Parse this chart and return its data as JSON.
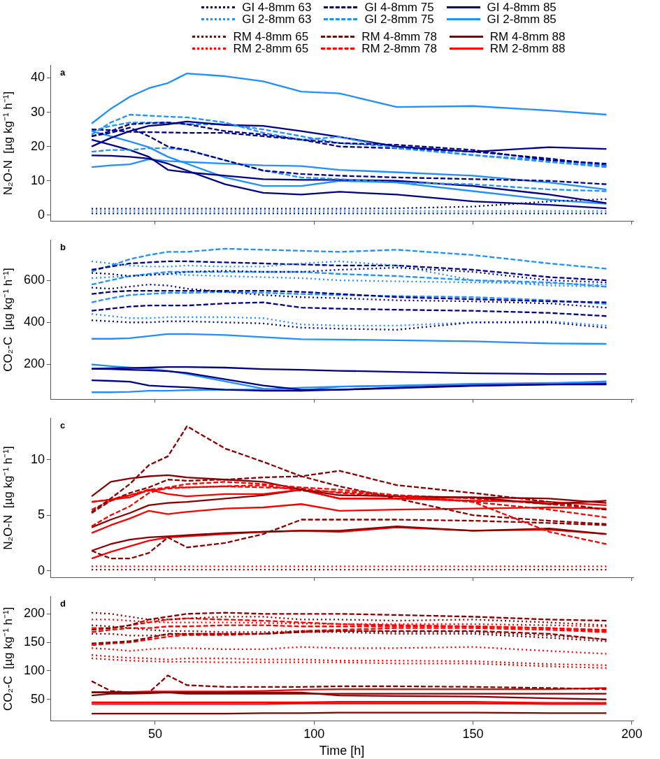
{
  "chart_data": [
    {
      "type": "line",
      "title": "a",
      "ylabel": "N₂O-N  [µg kg⁻¹ h⁻¹]",
      "x": [
        30,
        36,
        42,
        48,
        54,
        60,
        72,
        84,
        96,
        108,
        126,
        150,
        174,
        192
      ],
      "xlim": [
        17,
        200.5
      ],
      "xticks": [
        50,
        100,
        150,
        200
      ],
      "ylim": [
        -1.7,
        43.6
      ],
      "yticks": [
        0,
        10,
        20,
        30,
        40
      ],
      "grid": false,
      "legend": "top",
      "tick_labels": "y",
      "series": [
        {
          "name": "GI 4-8mm 63",
          "color": "#00008b",
          "line_style": "dotted",
          "values": [
            1.9,
            1.9,
            1.9,
            1.9,
            1.9,
            1.9,
            1.9,
            1.9,
            1.9,
            1.9,
            2,
            2.5,
            4,
            4.7
          ]
        },
        {
          "name": "GI 2-8mm 63",
          "color": "#1e90ff",
          "line_style": "dotted",
          "values": [
            1.2,
            1.2,
            1.2,
            1.2,
            1.2,
            1.2,
            1.2,
            1.2,
            1.2,
            1.2,
            1.2,
            1.2,
            1.2,
            1.2
          ]
        },
        {
          "name": "GI 4-8mm 75",
          "color": "#00008b",
          "line_style": "dashed",
          "values": [
            23,
            24.5,
            26.5,
            26.8,
            27,
            26.5,
            24.5,
            23.5,
            22,
            21,
            20.5,
            19,
            16,
            15
          ]
        },
        {
          "name": "GI 2-8mm 75",
          "color": "#1e90ff",
          "line_style": "dashed",
          "values": [
            23.5,
            27,
            29.3,
            29,
            28.7,
            28.5,
            27,
            24,
            22,
            22.8,
            19.5,
            17.5,
            16,
            14.3
          ]
        },
        {
          "name": "GI 4-8mm 85",
          "color": "#00008b",
          "line_style": "solid",
          "values": [
            20,
            22.5,
            24.5,
            26,
            26.5,
            27.3,
            26.3,
            26,
            24.5,
            22.8,
            20,
            18.5,
            19.8,
            19.3
          ]
        },
        {
          "name": "GI 2-8mm 85",
          "color": "#1e90ff",
          "line_style": "solid",
          "values": [
            26.7,
            31,
            34.5,
            37,
            38.5,
            41.3,
            40.5,
            39,
            36,
            35.5,
            31.5,
            31.8,
            30.5,
            29.3
          ]
        },
        {
          "color": "#00008b",
          "line_style": "dotted",
          "values": [
            0.5,
            0.5,
            0.5,
            0.5,
            0.5,
            0.5,
            0.5,
            0.5,
            0.5,
            0.5,
            0.5,
            0.5,
            0.5,
            0.5
          ]
        },
        {
          "color": "#00008b",
          "line_style": "dashed",
          "values": [
            25,
            24.8,
            24.3,
            24.2,
            24.1,
            24,
            24,
            23,
            22,
            20,
            19.5,
            18.5,
            16.5,
            14.5
          ]
        },
        {
          "color": "#00008b",
          "line_style": "dashed",
          "values": [
            23,
            24,
            25.5,
            23,
            20,
            19,
            16,
            13,
            12,
            11.5,
            11,
            10.5,
            10,
            9
          ]
        },
        {
          "color": "#1e90ff",
          "line_style": "dashed",
          "values": [
            18.5,
            19,
            19,
            19.5,
            19.5,
            19,
            16,
            13,
            11,
            10.5,
            9.5,
            9,
            7.5,
            7
          ]
        },
        {
          "color": "#1e90ff",
          "line_style": "dashed",
          "values": [
            24.5,
            26,
            27,
            27,
            27,
            26.5,
            26.5,
            25,
            23,
            21,
            20,
            17.5,
            15.5,
            14
          ]
        },
        {
          "color": "#00008b",
          "line_style": "solid",
          "values": [
            22,
            20.5,
            19,
            17,
            13.2,
            12.5,
            11.5,
            10.5,
            10.3,
            10.3,
            10,
            8.5,
            6,
            3.5
          ]
        },
        {
          "color": "#00008b",
          "line_style": "solid",
          "values": [
            17.4,
            17.3,
            17,
            16.5,
            15,
            13,
            9,
            6.5,
            6,
            6.8,
            6,
            4,
            3,
            2
          ]
        },
        {
          "color": "#1e90ff",
          "line_style": "solid",
          "values": [
            24.5,
            23,
            21.5,
            19.8,
            17,
            15,
            11,
            8.5,
            8.5,
            10,
            9.5,
            7,
            4.5,
            3.3
          ]
        },
        {
          "color": "#1e90ff",
          "line_style": "solid",
          "values": [
            14,
            14.5,
            14.8,
            16.3,
            15.8,
            15.5,
            15,
            14.5,
            14.3,
            13.2,
            12.5,
            11.5,
            9.5,
            7.5
          ]
        }
      ]
    },
    {
      "type": "line",
      "title": "b",
      "ylabel": "CO₂-C  [µg kg⁻¹ h⁻¹]",
      "x": [
        30,
        36,
        42,
        48,
        54,
        60,
        72,
        84,
        96,
        108,
        126,
        150,
        174,
        192
      ],
      "xlim": [
        17,
        200.5
      ],
      "xticks": [
        50,
        100,
        150,
        200
      ],
      "ylim": [
        35,
        790
      ],
      "yticks": [
        200,
        400,
        600
      ],
      "grid": false,
      "tick_labels": "y",
      "series": [
        {
          "color": "#00008b",
          "line_style": "dotted",
          "values": [
            635,
            630,
            620,
            625,
            630,
            640,
            645,
            640,
            640,
            650,
            660,
            640,
            600,
            590
          ]
        },
        {
          "color": "#00008b",
          "line_style": "dotted",
          "values": [
            565,
            560,
            570,
            580,
            575,
            560,
            545,
            530,
            520,
            515,
            505,
            500,
            490,
            470
          ]
        },
        {
          "color": "#00008b",
          "line_style": "dotted",
          "values": [
            410,
            405,
            400,
            400,
            405,
            405,
            400,
            395,
            375,
            370,
            365,
            400,
            400,
            375
          ]
        },
        {
          "color": "#1e90ff",
          "line_style": "dotted",
          "values": [
            690,
            680,
            670,
            665,
            665,
            670,
            665,
            665,
            680,
            690,
            670,
            600,
            575,
            570
          ]
        },
        {
          "color": "#1e90ff",
          "line_style": "dotted",
          "values": [
            610,
            615,
            620,
            625,
            630,
            625,
            620,
            615,
            610,
            600,
            595,
            590,
            585,
            580
          ]
        },
        {
          "color": "#1e90ff",
          "line_style": "dotted",
          "values": [
            440,
            430,
            420,
            420,
            425,
            425,
            425,
            420,
            390,
            385,
            385,
            400,
            405,
            385
          ]
        },
        {
          "color": "#00008b",
          "line_style": "dashed",
          "values": [
            650,
            665,
            680,
            685,
            690,
            690,
            685,
            680,
            675,
            670,
            670,
            650,
            615,
            600
          ]
        },
        {
          "color": "#00008b",
          "line_style": "dashed",
          "values": [
            535,
            545,
            550,
            550,
            550,
            550,
            550,
            550,
            545,
            535,
            520,
            510,
            500,
            495
          ]
        },
        {
          "color": "#00008b",
          "line_style": "dashed",
          "values": [
            455,
            465,
            475,
            480,
            480,
            480,
            490,
            495,
            470,
            465,
            460,
            455,
            445,
            430
          ]
        },
        {
          "color": "#1e90ff",
          "line_style": "dashed",
          "values": [
            642,
            670,
            700,
            720,
            735,
            735,
            750,
            745,
            740,
            735,
            745,
            720,
            680,
            655
          ]
        },
        {
          "color": "#1e90ff",
          "line_style": "dashed",
          "values": [
            580,
            600,
            620,
            630,
            640,
            640,
            640,
            640,
            640,
            630,
            620,
            600,
            590,
            570
          ]
        },
        {
          "color": "#1e90ff",
          "line_style": "dashed",
          "values": [
            495,
            515,
            530,
            535,
            540,
            540,
            545,
            540,
            535,
            530,
            525,
            520,
            505,
            488
          ]
        },
        {
          "color": "#00008b",
          "line_style": "solid",
          "values": [
            180,
            182,
            183,
            185,
            188,
            188,
            185,
            178,
            175,
            170,
            165,
            158,
            155,
            155
          ]
        },
        {
          "color": "#00008b",
          "line_style": "solid",
          "values": [
            180,
            178,
            175,
            172,
            168,
            160,
            130,
            100,
            80,
            80,
            88,
            98,
            105,
            105
          ]
        },
        {
          "color": "#00008b",
          "line_style": "solid",
          "values": [
            125,
            122,
            118,
            100,
            95,
            92,
            80,
            75,
            75,
            80,
            90,
            100,
            105,
            108
          ]
        },
        {
          "color": "#1e90ff",
          "line_style": "solid",
          "values": [
            322,
            322,
            325,
            335,
            345,
            345,
            340,
            330,
            320,
            318,
            315,
            310,
            300,
            298
          ]
        },
        {
          "color": "#1e90ff",
          "line_style": "solid",
          "values": [
            200,
            192,
            185,
            180,
            170,
            155,
            120,
            85,
            75,
            95,
            98,
            105,
            110,
            120
          ]
        },
        {
          "color": "#1e90ff",
          "line_style": "solid",
          "values": [
            68,
            68,
            70,
            75,
            75,
            78,
            80,
            82,
            90,
            95,
            100,
            108,
            112,
            115
          ]
        }
      ]
    },
    {
      "type": "line",
      "title": "c",
      "ylabel": "N₂O-N  [µg kg⁻¹ h⁻¹]",
      "x": [
        30,
        36,
        42,
        48,
        54,
        60,
        72,
        84,
        96,
        108,
        126,
        150,
        174,
        192
      ],
      "xlim": [
        17,
        200.5
      ],
      "xticks": [
        50,
        100,
        150,
        200
      ],
      "ylim": [
        -0.6,
        13.7
      ],
      "yticks": [
        0,
        5,
        10
      ],
      "grid": false,
      "legend": "top",
      "tick_labels": "y",
      "series": [
        {
          "name": "RM 4-8mm 65",
          "color": "#8b0000",
          "line_style": "dotted",
          "values": [
            0.1,
            0.1,
            0.1,
            0.1,
            0.1,
            0.1,
            0.1,
            0.1,
            0.1,
            0.1,
            0.1,
            0.1,
            0.1,
            0.1
          ]
        },
        {
          "name": "RM 2-8mm 65",
          "color": "#ff0000",
          "line_style": "dotted",
          "values": [
            0.4,
            0.4,
            0.4,
            0.4,
            0.4,
            0.4,
            0.4,
            0.4,
            0.4,
            0.4,
            0.4,
            0.4,
            0.4,
            0.4
          ]
        },
        {
          "name": "RM 4-8mm 78",
          "color": "#8b0000",
          "line_style": "dashed",
          "values": [
            5.3,
            6.5,
            7.8,
            9.5,
            10.3,
            13,
            11,
            9.8,
            8.5,
            9,
            7.7,
            7,
            6.2,
            5.5
          ]
        },
        {
          "name": "RM 2-8mm 78",
          "color": "#ff0000",
          "line_style": "dashed",
          "values": [
            4,
            5,
            5.8,
            7,
            7.5,
            7.8,
            8,
            7.8,
            7.5,
            7.3,
            6.8,
            6.2,
            3.5,
            2.4
          ]
        },
        {
          "name": "RM 4-8mm 88",
          "color": "#8b0000",
          "line_style": "solid",
          "values": [
            6.7,
            8,
            8.3,
            8.5,
            8.6,
            8.4,
            8.2,
            8,
            7.3,
            6.8,
            6.7,
            6.6,
            6,
            6.3
          ]
        },
        {
          "name": "RM 2-8mm 88",
          "color": "#ff0000",
          "line_style": "solid",
          "values": [
            6.2,
            6.4,
            6.6,
            7.3,
            6.9,
            6.7,
            6.9,
            6.9,
            7.3,
            6.5,
            6.5,
            6.3,
            6.2,
            5.9
          ]
        },
        {
          "color": "#8b0000",
          "line_style": "dashed",
          "values": [
            1.8,
            1.1,
            1.1,
            1.6,
            3,
            2.1,
            2.5,
            3.3,
            4.6,
            4.6,
            4.6,
            4.5,
            4.3,
            4.1
          ]
        },
        {
          "color": "#8b0000",
          "line_style": "dashed",
          "values": [
            5.2,
            6.3,
            7,
            7.5,
            8.2,
            8.1,
            8.2,
            8.4,
            8.5,
            7.6,
            6.5,
            5,
            4.5,
            4.2
          ]
        },
        {
          "color": "#ff0000",
          "line_style": "dashed",
          "values": [
            5.5,
            6.3,
            6.8,
            7.3,
            7.5,
            7.5,
            7.6,
            7.7,
            7.2,
            7.1,
            6.8,
            6.5,
            6,
            5.5
          ]
        },
        {
          "color": "#ff0000",
          "line_style": "dashed",
          "values": [
            6.2,
            6.4,
            6.8,
            7.2,
            7.4,
            7.5,
            7.6,
            7.5,
            7.4,
            7,
            6.7,
            6.2,
            5.5,
            4.8
          ]
        },
        {
          "color": "#8b0000",
          "line_style": "solid",
          "values": [
            3.9,
            4.6,
            5.2,
            5.9,
            6.1,
            6.2,
            6.5,
            6.8,
            7.3,
            6.5,
            6.5,
            6.6,
            6.5,
            6.1
          ]
        },
        {
          "color": "#8b0000",
          "line_style": "solid",
          "values": [
            1.8,
            2.4,
            2.8,
            3,
            3.1,
            3.2,
            3.4,
            3.5,
            3.6,
            3.6,
            4,
            3.6,
            3.8,
            3.3
          ]
        },
        {
          "color": "#ff0000",
          "line_style": "solid",
          "values": [
            3.4,
            4.1,
            4.7,
            5.4,
            5.1,
            5.3,
            5.6,
            5.7,
            6,
            5.4,
            5.5,
            5.6,
            5.7,
            5.6
          ]
        },
        {
          "color": "#ff0000",
          "line_style": "solid",
          "values": [
            1.1,
            1.7,
            2.2,
            2.7,
            3,
            3.1,
            3.3,
            3.5,
            3.6,
            3.5,
            3.9,
            3.6,
            3.7,
            3.3
          ]
        }
      ]
    },
    {
      "type": "line",
      "title": "d",
      "xlabel": "Time [h]",
      "ylabel": "CO₂-C  [µg kg⁻¹ h⁻¹]",
      "x": [
        30,
        36,
        42,
        48,
        54,
        60,
        72,
        84,
        96,
        108,
        126,
        150,
        174,
        192
      ],
      "xlim": [
        17,
        200.5
      ],
      "xticks": [
        50,
        100,
        150,
        200
      ],
      "ylim": [
        12,
        230
      ],
      "yticks": [
        50,
        100,
        150,
        200
      ],
      "grid": false,
      "series": [
        {
          "color": "#8b0000",
          "line_style": "dotted",
          "values": [
            202,
            200,
            195,
            190,
            190,
            192,
            195,
            195,
            190,
            190,
            188,
            190,
            185,
            180
          ]
        },
        {
          "color": "#8b0000",
          "line_style": "dotted",
          "values": [
            180,
            178,
            175,
            172,
            170,
            170,
            168,
            168,
            170,
            170,
            168,
            168,
            162,
            155
          ]
        },
        {
          "color": "#8b0000",
          "line_style": "dotted",
          "values": [
            165,
            165,
            162,
            162,
            163,
            165,
            165,
            165,
            168,
            168,
            165,
            165,
            158,
            152
          ]
        },
        {
          "color": "#ff0000",
          "line_style": "dotted",
          "values": [
            190,
            190,
            188,
            186,
            185,
            185,
            185,
            184,
            183,
            182,
            182,
            182,
            180,
            178
          ]
        },
        {
          "color": "#ff0000",
          "line_style": "dotted",
          "values": [
            140,
            138,
            135,
            138,
            140,
            140,
            138,
            138,
            142,
            140,
            140,
            142,
            135,
            130
          ]
        },
        {
          "color": "#ff0000",
          "line_style": "dotted",
          "values": [
            128,
            125,
            123,
            122,
            120,
            122,
            122,
            120,
            120,
            118,
            118,
            117,
            112,
            110
          ]
        },
        {
          "color": "#ff0000",
          "line_style": "dotted",
          "values": [
            122,
            120,
            118,
            117,
            116,
            116,
            115,
            115,
            115,
            115,
            113,
            113,
            108,
            105
          ]
        },
        {
          "color": "#8b0000",
          "line_style": "dashed",
          "values": [
            148,
            150,
            152,
            158,
            165,
            165,
            165,
            165,
            168,
            170,
            170,
            170,
            165,
            155
          ]
        },
        {
          "color": "#8b0000",
          "line_style": "dashed",
          "values": [
            172,
            175,
            180,
            190,
            195,
            200,
            202,
            200,
            200,
            200,
            198,
            195,
            190,
            188
          ]
        },
        {
          "color": "#8b0000",
          "line_style": "dashed",
          "values": [
            82,
            65,
            62,
            62,
            92,
            75,
            72,
            72,
            72,
            73,
            73,
            72,
            70,
            68
          ]
        },
        {
          "color": "#ff0000",
          "line_style": "dashed",
          "values": [
            145,
            148,
            150,
            155,
            160,
            163,
            163,
            165,
            170,
            172,
            175,
            175,
            172,
            168
          ]
        },
        {
          "color": "#ff0000",
          "line_style": "dashed",
          "values": [
            175,
            175,
            180,
            185,
            190,
            192,
            190,
            188,
            185,
            182,
            180,
            178,
            175,
            172
          ]
        },
        {
          "color": "#ff0000",
          "line_style": "dashed",
          "values": [
            168,
            172,
            175,
            175,
            178,
            178,
            180,
            180,
            178,
            178,
            178,
            178,
            175,
            170
          ]
        },
        {
          "color": "#8b0000",
          "line_style": "solid",
          "values": [
            57,
            60,
            60,
            61,
            62,
            60,
            60,
            60,
            60,
            60,
            60,
            60,
            60,
            60
          ]
        },
        {
          "color": "#8b0000",
          "line_style": "solid",
          "values": [
            62,
            62,
            62,
            62,
            62,
            62,
            62,
            62,
            62,
            57,
            56,
            55,
            52,
            50
          ]
        },
        {
          "color": "#8b0000",
          "line_style": "solid",
          "values": [
            25,
            25,
            25,
            25,
            25,
            25,
            25,
            26,
            26,
            27,
            27,
            27,
            26,
            26
          ]
        },
        {
          "color": "#ff0000",
          "line_style": "solid",
          "values": [
            63,
            63,
            63,
            64,
            64,
            64,
            64,
            65,
            67,
            68,
            68,
            68,
            68,
            70
          ]
        },
        {
          "color": "#ff0000",
          "line_style": "solid",
          "values": [
            45,
            45,
            45,
            45,
            45,
            45,
            45,
            45,
            45,
            46,
            46,
            46,
            44,
            44
          ]
        },
        {
          "color": "#ff0000",
          "line_style": "solid",
          "values": [
            42,
            42,
            42,
            42,
            42,
            42,
            42,
            42,
            43,
            43,
            43,
            43,
            42,
            42
          ]
        }
      ]
    }
  ]
}
